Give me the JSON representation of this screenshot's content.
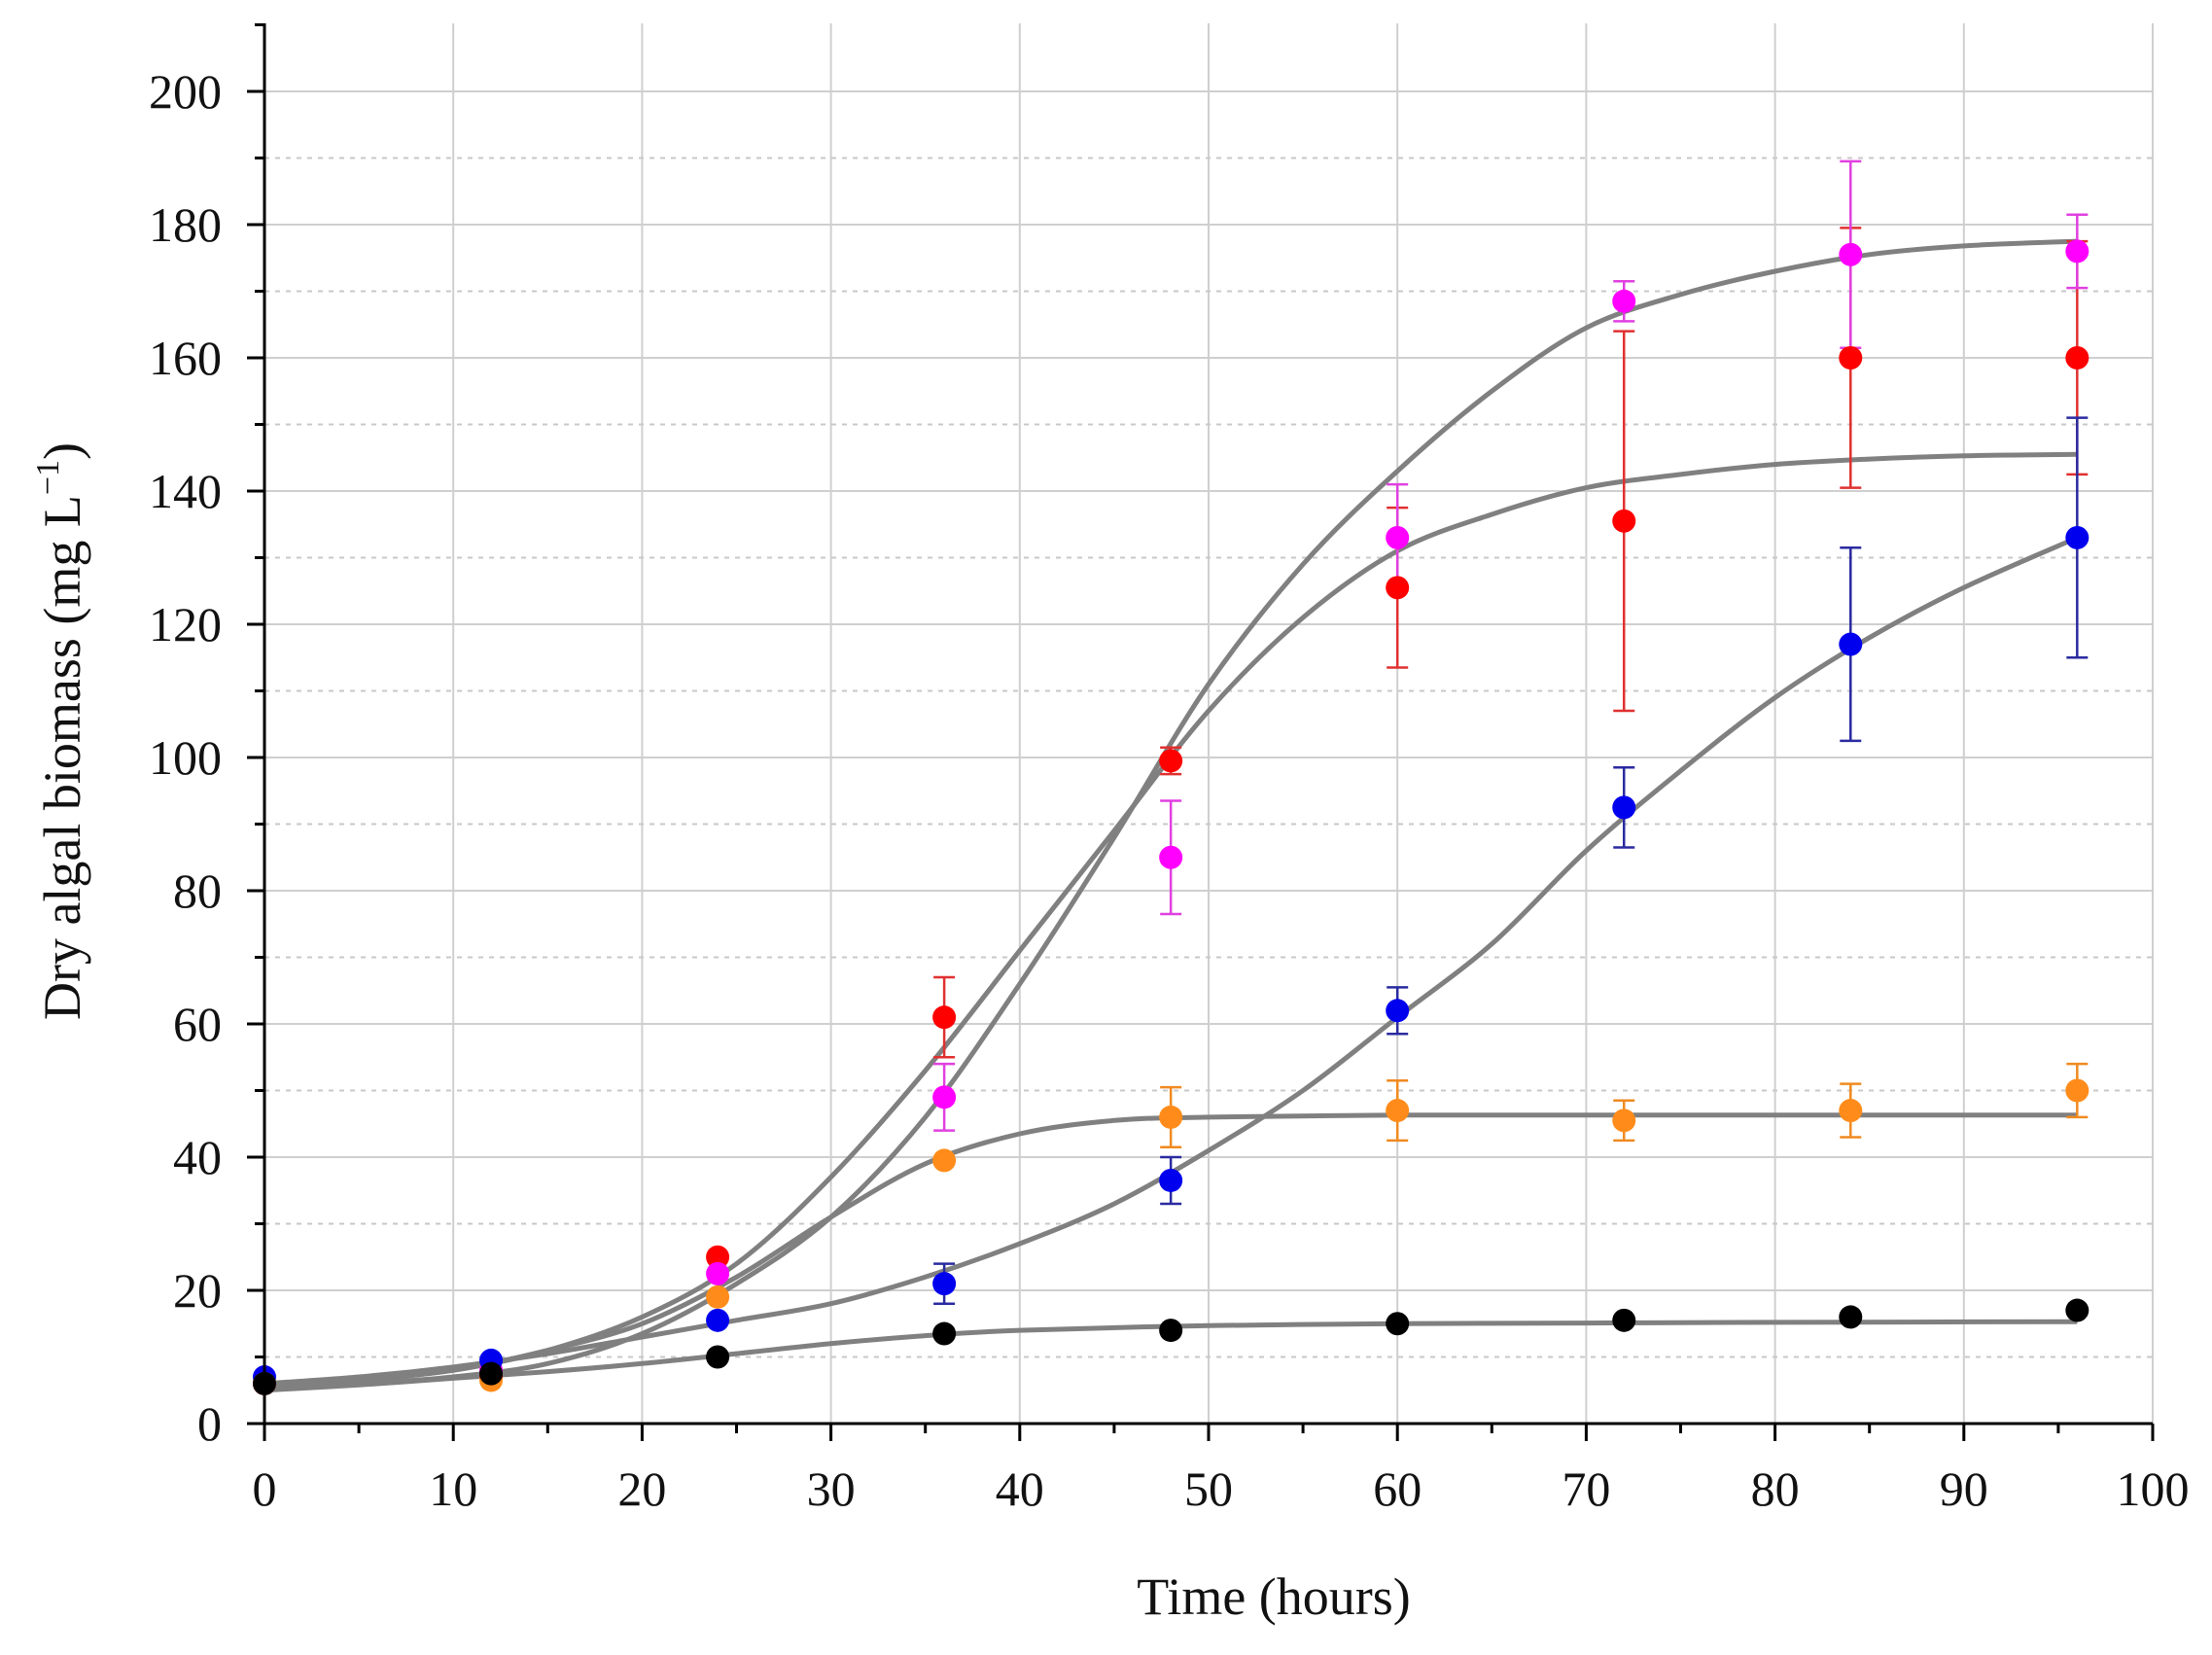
{
  "chart_data": {
    "type": "scatter",
    "title": "",
    "xlabel": "Time (hours)",
    "ylabel_main": "Dry algal biomass (mg L",
    "ylabel_sup": "−1",
    "ylabel_close": ")",
    "xlim": [
      0,
      100
    ],
    "ylim": [
      0,
      210
    ],
    "xticks": [
      0,
      10,
      20,
      30,
      40,
      50,
      60,
      70,
      80,
      90,
      100
    ],
    "yticks": [
      0,
      20,
      40,
      60,
      80,
      100,
      120,
      140,
      160,
      180,
      200
    ],
    "grid": true,
    "legend": "none",
    "fit_color": "#808080",
    "series": [
      {
        "name": "red",
        "color": "#ff0000",
        "errorbar_color": "#e03030",
        "x": [
          0,
          12,
          24,
          36,
          48,
          60,
          72,
          84,
          96
        ],
        "y": [
          6,
          7,
          25,
          61,
          99.5,
          125.5,
          135.5,
          160,
          160
        ],
        "err": [
          0.5,
          0.5,
          1,
          6,
          2,
          12,
          28.5,
          19.5,
          17.5
        ],
        "fit": [
          [
            0,
            5.5
          ],
          [
            5,
            6.5
          ],
          [
            10,
            8
          ],
          [
            15,
            11
          ],
          [
            20,
            16
          ],
          [
            25,
            24
          ],
          [
            30,
            37
          ],
          [
            35,
            53
          ],
          [
            40,
            71
          ],
          [
            45,
            89
          ],
          [
            50,
            107
          ],
          [
            55,
            121
          ],
          [
            60,
            131
          ],
          [
            65,
            136.5
          ],
          [
            70,
            140.5
          ],
          [
            75,
            142.5
          ],
          [
            80,
            144
          ],
          [
            85,
            144.8
          ],
          [
            90,
            145.3
          ],
          [
            96,
            145.5
          ]
        ]
      },
      {
        "name": "magenta",
        "color": "#ff00ff",
        "errorbar_color": "#e040e0",
        "x": [
          0,
          12,
          24,
          36,
          48,
          60,
          72,
          84,
          96
        ],
        "y": [
          6,
          8,
          22.5,
          49,
          85,
          133,
          168.5,
          175.5,
          176
        ],
        "err": [
          0.5,
          0.5,
          1,
          5,
          8.5,
          8,
          3,
          14,
          5.5
        ],
        "fit": [
          [
            0,
            5.5
          ],
          [
            5,
            6
          ],
          [
            10,
            7
          ],
          [
            15,
            9
          ],
          [
            20,
            13.5
          ],
          [
            25,
            21
          ],
          [
            30,
            31
          ],
          [
            35,
            46
          ],
          [
            40,
            66
          ],
          [
            45,
            88
          ],
          [
            50,
            111
          ],
          [
            55,
            129
          ],
          [
            60,
            143
          ],
          [
            65,
            155
          ],
          [
            70,
            164.5
          ],
          [
            75,
            169.5
          ],
          [
            80,
            173
          ],
          [
            85,
            175.5
          ],
          [
            90,
            176.8
          ],
          [
            96,
            177.5
          ]
        ]
      },
      {
        "name": "blue",
        "color": "#0000ee",
        "errorbar_color": "#2a2aa0",
        "x": [
          0,
          12,
          24,
          36,
          48,
          60,
          72,
          84,
          96
        ],
        "y": [
          7,
          9.5,
          15.5,
          21,
          36.5,
          62,
          92.5,
          117,
          133
        ],
        "err": [
          0.5,
          0.5,
          1,
          3,
          3.5,
          3.5,
          6,
          14.5,
          18
        ],
        "fit": [
          [
            0,
            6
          ],
          [
            5,
            7
          ],
          [
            10,
            8.5
          ],
          [
            15,
            10.5
          ],
          [
            20,
            13
          ],
          [
            25,
            15.5
          ],
          [
            30,
            18
          ],
          [
            35,
            22
          ],
          [
            40,
            27
          ],
          [
            45,
            33
          ],
          [
            50,
            41
          ],
          [
            55,
            50
          ],
          [
            60,
            61
          ],
          [
            65,
            72
          ],
          [
            70,
            86
          ],
          [
            75,
            98
          ],
          [
            80,
            109
          ],
          [
            85,
            118
          ],
          [
            90,
            125.5
          ],
          [
            96,
            133
          ]
        ]
      },
      {
        "name": "orange",
        "color": "#ff8c1a",
        "errorbar_color": "#f08a20",
        "x": [
          0,
          12,
          24,
          36,
          48,
          60,
          72,
          84,
          96
        ],
        "y": [
          6,
          6.5,
          19,
          39.5,
          46,
          47,
          45.5,
          47,
          50
        ],
        "err": [
          0.5,
          0.5,
          1,
          1,
          4.5,
          4.5,
          3,
          4,
          4
        ],
        "fit": [
          [
            0,
            5.5
          ],
          [
            5,
            6.5
          ],
          [
            10,
            8
          ],
          [
            15,
            11
          ],
          [
            20,
            15
          ],
          [
            25,
            22
          ],
          [
            30,
            31
          ],
          [
            35,
            39
          ],
          [
            40,
            43.5
          ],
          [
            45,
            45.5
          ],
          [
            50,
            46
          ],
          [
            60,
            46.3
          ],
          [
            70,
            46.3
          ],
          [
            80,
            46.3
          ],
          [
            96,
            46.3
          ]
        ]
      },
      {
        "name": "black",
        "color": "#000000",
        "errorbar_color": "#000000",
        "x": [
          0,
          12,
          24,
          36,
          48,
          60,
          72,
          84,
          96
        ],
        "y": [
          6,
          7.5,
          10,
          13.5,
          14,
          15,
          15.5,
          16,
          17
        ],
        "err": [
          0.5,
          0.5,
          1,
          1,
          1,
          1,
          1,
          1,
          1
        ],
        "fit": [
          [
            0,
            5
          ],
          [
            5,
            5.8
          ],
          [
            10,
            6.8
          ],
          [
            15,
            7.8
          ],
          [
            20,
            9
          ],
          [
            25,
            10.5
          ],
          [
            30,
            12
          ],
          [
            35,
            13.2
          ],
          [
            40,
            14
          ],
          [
            50,
            14.7
          ],
          [
            60,
            15
          ],
          [
            70,
            15.1
          ],
          [
            80,
            15.2
          ],
          [
            96,
            15.3
          ]
        ]
      }
    ]
  }
}
